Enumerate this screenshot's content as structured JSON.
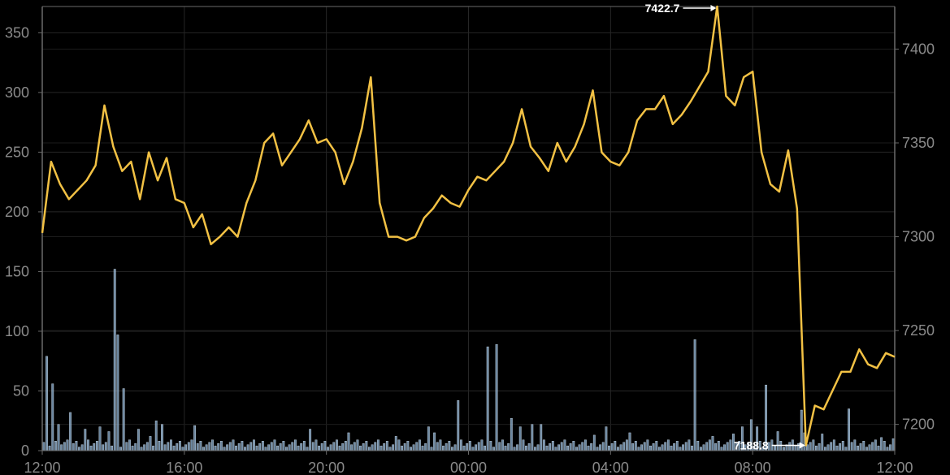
{
  "chart_data": {
    "type": "line",
    "title": "",
    "xlabel": "",
    "ylabel": "",
    "x_tick_labels": [
      "12:00",
      "16:00",
      "20:00",
      "00:00",
      "04:00",
      "08:00",
      "12:00"
    ],
    "x_range_hours": [
      0,
      24
    ],
    "left_axis": {
      "ticks": [
        0,
        50,
        100,
        150,
        200,
        250,
        300,
        350
      ],
      "ylim": [
        0,
        372
      ]
    },
    "right_axis": {
      "ticks": [
        7200,
        7250,
        7300,
        7350,
        7400
      ],
      "ylim": [
        7186,
        7422.7
      ]
    },
    "grid": true,
    "colors": {
      "price": "#f2c144",
      "volume": "#8fb3d4",
      "grid": "#262626",
      "axis": "#6a6a6a"
    },
    "price_series": {
      "axis": "right",
      "x_hours": [
        0,
        0.25,
        0.5,
        0.75,
        1,
        1.25,
        1.5,
        1.75,
        2,
        2.25,
        2.5,
        2.75,
        3,
        3.25,
        3.5,
        3.75,
        4,
        4.25,
        4.5,
        4.75,
        5,
        5.25,
        5.5,
        5.75,
        6,
        6.25,
        6.5,
        6.75,
        7,
        7.25,
        7.5,
        7.75,
        8,
        8.25,
        8.5,
        8.75,
        9,
        9.25,
        9.5,
        9.75,
        10,
        10.25,
        10.5,
        10.75,
        11,
        11.25,
        11.5,
        11.75,
        12,
        12.25,
        12.5,
        12.75,
        13,
        13.25,
        13.5,
        13.75,
        14,
        14.25,
        14.5,
        14.75,
        15,
        15.25,
        15.5,
        15.75,
        16,
        16.25,
        16.5,
        16.75,
        17,
        17.25,
        17.5,
        17.75,
        18,
        18.25,
        18.5,
        18.75,
        19,
        19.25,
        19.5,
        19.75,
        20,
        20.25,
        20.5,
        20.75,
        21,
        21.25,
        21.5,
        21.75,
        22,
        22.25,
        22.5,
        22.75,
        23,
        23.25,
        23.5,
        23.75,
        24
      ],
      "values": [
        7302,
        7340,
        7328,
        7320,
        7325,
        7330,
        7338,
        7370,
        7348,
        7335,
        7340,
        7320,
        7345,
        7330,
        7342,
        7320,
        7318,
        7305,
        7312,
        7296,
        7300,
        7305,
        7300,
        7318,
        7330,
        7350,
        7355,
        7338,
        7345,
        7352,
        7362,
        7350,
        7352,
        7345,
        7328,
        7340,
        7358,
        7385,
        7318,
        7300,
        7300,
        7298,
        7300,
        7310,
        7315,
        7322,
        7318,
        7316,
        7325,
        7332,
        7330,
        7335,
        7340,
        7350,
        7368,
        7348,
        7342,
        7335,
        7350,
        7340,
        7348,
        7360,
        7378,
        7345,
        7340,
        7338,
        7345,
        7362,
        7368,
        7368,
        7375,
        7360,
        7365,
        7372,
        7380,
        7388,
        7422.7,
        7375,
        7370,
        7385,
        7388,
        7345,
        7328,
        7324,
        7346,
        7315,
        7188.8,
        7210,
        7208,
        7218,
        7228,
        7228,
        7240,
        7232,
        7230,
        7238,
        7236
      ],
      "annotations": [
        {
          "label": "7422.7",
          "kind": "max"
        },
        {
          "label": "7188.8",
          "kind": "min"
        }
      ]
    },
    "volume_series": {
      "axis": "left",
      "type": "bar",
      "bar_width_hours": 0.08333,
      "peaks": [
        {
          "x_hours": 0.1,
          "value": 79
        },
        {
          "x_hours": 0.25,
          "value": 56
        },
        {
          "x_hours": 0.45,
          "value": 22
        },
        {
          "x_hours": 0.75,
          "value": 32
        },
        {
          "x_hours": 1.2,
          "value": 18
        },
        {
          "x_hours": 1.6,
          "value": 20
        },
        {
          "x_hours": 1.85,
          "value": 16
        },
        {
          "x_hours": 2.0,
          "value": 152
        },
        {
          "x_hours": 2.08,
          "value": 97
        },
        {
          "x_hours": 2.25,
          "value": 52
        },
        {
          "x_hours": 2.65,
          "value": 18
        },
        {
          "x_hours": 3.0,
          "value": 12
        },
        {
          "x_hours": 3.2,
          "value": 25
        },
        {
          "x_hours": 3.35,
          "value": 22
        },
        {
          "x_hours": 4.25,
          "value": 21
        },
        {
          "x_hours": 7.5,
          "value": 18
        },
        {
          "x_hours": 8.6,
          "value": 15
        },
        {
          "x_hours": 9.9,
          "value": 12
        },
        {
          "x_hours": 10.85,
          "value": 20
        },
        {
          "x_hours": 11.0,
          "value": 15
        },
        {
          "x_hours": 11.7,
          "value": 42
        },
        {
          "x_hours": 12.5,
          "value": 87
        },
        {
          "x_hours": 12.75,
          "value": 89
        },
        {
          "x_hours": 13.15,
          "value": 27
        },
        {
          "x_hours": 13.45,
          "value": 20
        },
        {
          "x_hours": 13.75,
          "value": 22
        },
        {
          "x_hours": 14.0,
          "value": 22
        },
        {
          "x_hours": 15.5,
          "value": 13
        },
        {
          "x_hours": 15.8,
          "value": 20
        },
        {
          "x_hours": 16.5,
          "value": 15
        },
        {
          "x_hours": 18.35,
          "value": 93
        },
        {
          "x_hours": 18.85,
          "value": 12
        },
        {
          "x_hours": 19.4,
          "value": 14
        },
        {
          "x_hours": 19.65,
          "value": 20
        },
        {
          "x_hours": 19.9,
          "value": 26
        },
        {
          "x_hours": 20.1,
          "value": 20
        },
        {
          "x_hours": 20.3,
          "value": 55
        },
        {
          "x_hours": 20.65,
          "value": 16
        },
        {
          "x_hours": 21.3,
          "value": 34
        },
        {
          "x_hours": 21.45,
          "value": 15
        },
        {
          "x_hours": 21.9,
          "value": 14
        },
        {
          "x_hours": 22.7,
          "value": 35
        },
        {
          "x_hours": 23.6,
          "value": 11
        },
        {
          "x_hours": 24.0,
          "value": 10
        }
      ]
    }
  }
}
